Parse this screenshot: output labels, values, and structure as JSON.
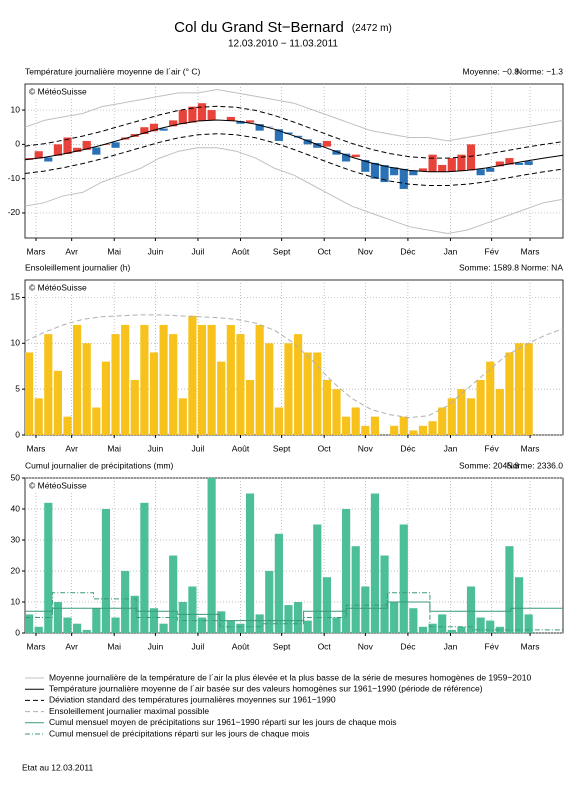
{
  "title": "Col du Grand St−Bernard",
  "altitude": "(2472 m)",
  "period": "12.03.2010 − 11.03.2011",
  "chart_data": [
    {
      "type": "deviation",
      "title": "Température journalière moyenne de l´air (° C)",
      "stats": [
        "Moyenne: −0.8",
        "Norme: −1.3"
      ],
      "copyright": "© MétéoSuisse",
      "xlim": [
        0,
        392
      ],
      "ylim": [
        -27.3,
        17.6
      ],
      "yticks": [
        -20,
        -10,
        0,
        10
      ],
      "xticks": [
        {
          "value": 8,
          "label": "Mars"
        },
        {
          "value": 34,
          "label": "Avr"
        },
        {
          "value": 65,
          "label": "Mai"
        },
        {
          "value": 95,
          "label": "Juin"
        },
        {
          "value": 126,
          "label": "Juil"
        },
        {
          "value": 157,
          "label": "Août"
        },
        {
          "value": 187,
          "label": "Sept"
        },
        {
          "value": 218,
          "label": "Oct"
        },
        {
          "value": 248,
          "label": "Nov"
        },
        {
          "value": 279,
          "label": "Déc"
        },
        {
          "value": 310,
          "label": "Jan"
        },
        {
          "value": 340,
          "label": "Fév"
        },
        {
          "value": 368,
          "label": "Mars"
        }
      ],
      "colors": {
        "above": "#e8433a",
        "below": "#2a72b5",
        "norm": "#000000",
        "records": "#c0c0c0"
      },
      "x": [
        0,
        7,
        14,
        21,
        28,
        35,
        42,
        49,
        56,
        63,
        70,
        77,
        84,
        91,
        98,
        105,
        112,
        119,
        126,
        133,
        140,
        147,
        154,
        161,
        168,
        175,
        182,
        189,
        196,
        203,
        210,
        217,
        224,
        231,
        238,
        245,
        252,
        259,
        266,
        273,
        280,
        287,
        294,
        301,
        308,
        315,
        322,
        329,
        336,
        343,
        350,
        357,
        364
      ],
      "values": [
        -4,
        -2,
        -5,
        0,
        2,
        -1,
        1,
        -3,
        0,
        -1,
        2,
        3,
        5,
        6,
        4,
        7,
        10,
        11,
        12,
        10,
        7,
        8,
        6,
        7,
        4,
        5,
        1,
        3,
        2,
        0,
        -1,
        1,
        -3,
        -5,
        -3,
        -8,
        -10,
        -11,
        -9,
        -13,
        -9,
        -7,
        -3,
        -6,
        -4,
        -3,
        0,
        -9,
        -8,
        -5,
        -4,
        -6,
        -6
      ],
      "curve_x": [
        0,
        14,
        28,
        42,
        56,
        70,
        84,
        98,
        112,
        126,
        140,
        154,
        168,
        182,
        196,
        210,
        224,
        238,
        252,
        266,
        280,
        294,
        308,
        322,
        336,
        350,
        364,
        378,
        392
      ],
      "norm": [
        -4.5,
        -3.8,
        -2.8,
        -1.6,
        -0.2,
        1.4,
        3.0,
        4.6,
        5.9,
        6.8,
        7.1,
        6.8,
        5.9,
        4.4,
        2.5,
        0.4,
        -1.7,
        -3.7,
        -5.4,
        -6.7,
        -7.6,
        -8.0,
        -8.0,
        -7.6,
        -6.9,
        -5.9,
        -4.9,
        -4.0,
        -3.2
      ],
      "sd_upper": [
        -0.5,
        0.2,
        1.2,
        2.4,
        3.8,
        5.4,
        7.0,
        8.6,
        9.9,
        10.8,
        11.1,
        10.8,
        9.9,
        8.4,
        6.5,
        4.4,
        2.3,
        0.3,
        -1.4,
        -2.7,
        -3.6,
        -4.0,
        -4.0,
        -3.6,
        -2.9,
        -1.9,
        -0.9,
        0,
        0.8
      ],
      "sd_lower": [
        -8.5,
        -7.8,
        -6.8,
        -5.6,
        -4.2,
        -2.6,
        -1.0,
        0.6,
        1.9,
        2.8,
        3.1,
        2.8,
        1.9,
        0.4,
        -1.5,
        -3.6,
        -5.7,
        -7.7,
        -9.4,
        -10.7,
        -11.6,
        -12,
        -12,
        -11.6,
        -10.9,
        -9.9,
        -8.9,
        -8,
        -7.2
      ],
      "record_high": [
        5,
        7,
        8,
        9,
        11,
        12,
        13,
        14,
        15,
        15,
        16,
        15,
        14,
        13,
        12,
        10,
        8,
        6,
        4,
        3,
        2,
        2,
        1,
        2,
        3,
        4,
        5,
        6,
        7
      ],
      "record_low": [
        -18,
        -17,
        -15,
        -14,
        -11,
        -9,
        -7,
        -4,
        -2,
        -1,
        -1,
        -2,
        -4,
        -7,
        -9,
        -12,
        -15,
        -18,
        -20,
        -22,
        -24,
        -25,
        -26,
        -25,
        -23,
        -21,
        -19,
        -17,
        -16
      ]
    },
    {
      "type": "sunshine",
      "title": "Ensoleillement journalier (h)",
      "stats": [
        "Somme: 1589.8",
        "Norme: NA"
      ],
      "copyright": "© MétéoSuisse",
      "xlim": [
        0,
        392
      ],
      "ylim": [
        0,
        16.9
      ],
      "yticks": [
        0,
        5,
        10,
        15
      ],
      "xticks": [
        {
          "value": 8,
          "label": "Mars"
        },
        {
          "value": 34,
          "label": "Avr"
        },
        {
          "value": 65,
          "label": "Mai"
        },
        {
          "value": 95,
          "label": "Juin"
        },
        {
          "value": 126,
          "label": "Juil"
        },
        {
          "value": 157,
          "label": "Août"
        },
        {
          "value": 187,
          "label": "Sept"
        },
        {
          "value": 218,
          "label": "Oct"
        },
        {
          "value": 248,
          "label": "Nov"
        },
        {
          "value": 279,
          "label": "Déc"
        },
        {
          "value": 310,
          "label": "Jan"
        },
        {
          "value": 340,
          "label": "Fév"
        },
        {
          "value": 368,
          "label": "Mars"
        }
      ],
      "colors": {
        "bar": "#f8c21c",
        "possible": "#b0b0b0"
      },
      "x": [
        0,
        7,
        14,
        21,
        28,
        35,
        42,
        49,
        56,
        63,
        70,
        77,
        84,
        91,
        98,
        105,
        112,
        119,
        126,
        133,
        140,
        147,
        154,
        161,
        168,
        175,
        182,
        189,
        196,
        203,
        210,
        217,
        224,
        231,
        238,
        245,
        252,
        259,
        266,
        273,
        280,
        287,
        294,
        301,
        308,
        315,
        322,
        329,
        336,
        343,
        350,
        357,
        364
      ],
      "values": [
        9,
        4,
        11,
        7,
        2,
        12,
        10,
        3,
        8,
        11,
        12,
        6,
        12,
        9,
        12,
        11,
        4,
        13,
        12,
        12,
        8,
        12,
        11,
        6,
        12,
        10,
        3,
        10,
        11,
        9,
        9,
        6,
        5,
        2,
        3,
        1,
        2,
        0,
        1,
        2,
        0.5,
        1,
        1.5,
        3,
        4,
        5,
        4,
        6,
        8,
        5,
        9,
        10,
        10
      ],
      "curve_x": [
        0,
        14,
        28,
        42,
        56,
        70,
        84,
        98,
        112,
        126,
        140,
        154,
        168,
        182,
        196,
        210,
        224,
        238,
        252,
        266,
        280,
        294,
        308,
        322,
        336,
        350,
        364,
        378,
        392
      ],
      "possible": [
        10.2,
        11.2,
        12.0,
        12.6,
        12.9,
        13.0,
        13.1,
        13.1,
        13.0,
        12.9,
        12.8,
        12.6,
        12.2,
        11.4,
        10.0,
        8.0,
        5.8,
        4.0,
        2.8,
        2.2,
        1.9,
        2.1,
        3.2,
        5.0,
        6.8,
        8.6,
        9.8,
        10.8,
        11.6
      ]
    },
    {
      "type": "precipitation",
      "title": "Cumul journalier de précipitations (mm)",
      "stats": [
        "Somme: 2045.8",
        "Norme: 2336.0"
      ],
      "copyright": "© MétéoSuisse",
      "xlim": [
        0,
        392
      ],
      "ylim": [
        0,
        50
      ],
      "yticks": [
        0,
        10,
        20,
        30,
        40,
        50
      ],
      "xticks": [
        {
          "value": 8,
          "label": "Mars"
        },
        {
          "value": 34,
          "label": "Avr"
        },
        {
          "value": 65,
          "label": "Mai"
        },
        {
          "value": 95,
          "label": "Juin"
        },
        {
          "value": 126,
          "label": "Juil"
        },
        {
          "value": 157,
          "label": "Août"
        },
        {
          "value": 187,
          "label": "Sept"
        },
        {
          "value": 218,
          "label": "Oct"
        },
        {
          "value": 248,
          "label": "Nov"
        },
        {
          "value": 279,
          "label": "Déc"
        },
        {
          "value": 310,
          "label": "Jan"
        },
        {
          "value": 340,
          "label": "Fév"
        },
        {
          "value": 368,
          "label": "Mars"
        }
      ],
      "colors": {
        "bar": "#4cbf98",
        "steps": "#3a9a78"
      },
      "x": [
        0,
        7,
        14,
        21,
        28,
        35,
        42,
        49,
        56,
        63,
        70,
        77,
        84,
        91,
        98,
        105,
        112,
        119,
        126,
        133,
        140,
        147,
        154,
        161,
        168,
        175,
        182,
        189,
        196,
        203,
        210,
        217,
        224,
        231,
        238,
        245,
        252,
        259,
        266,
        273,
        280,
        287,
        294,
        301,
        308,
        315,
        322,
        329,
        336,
        343,
        350,
        357,
        364
      ],
      "values": [
        6,
        2,
        42,
        10,
        5,
        3,
        1,
        8,
        40,
        5,
        20,
        12,
        42,
        8,
        3,
        25,
        10,
        15,
        5,
        50,
        7,
        4,
        3,
        45,
        6,
        20,
        32,
        9,
        10,
        4,
        35,
        18,
        5,
        40,
        28,
        15,
        45,
        25,
        10,
        35,
        8,
        2,
        3,
        6,
        1,
        2,
        15,
        5,
        4,
        2,
        28,
        18,
        6
      ],
      "step_x": [
        0,
        20,
        50,
        81,
        111,
        142,
        173,
        203,
        234,
        264,
        295,
        326,
        354,
        392
      ],
      "norm_steps": [
        7,
        8,
        8,
        7,
        6,
        4,
        4,
        7,
        8,
        10,
        7,
        7,
        8
      ],
      "actual_steps": [
        5,
        13,
        11,
        5,
        4,
        2,
        3,
        5,
        9,
        13,
        2,
        1,
        1
      ]
    }
  ],
  "legend": [
    "Moyenne journalière de la température de l´air la plus élevée et la plus basse de la série de mesures homogènes de 1959−2010",
    "Température journalière moyenne de l´air basée sur des valeurs homogènes sur 1961−1990 (période de référence)",
    "Déviation standard des températures journalières moyennes sur 1961−1990",
    "Ensoleillement journalier maximal possible",
    "Cumul mensuel moyen de précipitations sur 1961−1990 réparti sur les jours de chaque mois",
    "Cumul mensuel de précipitations réparti sur les jours de chaque mois"
  ],
  "footer": "Etat au 12.03.2011"
}
